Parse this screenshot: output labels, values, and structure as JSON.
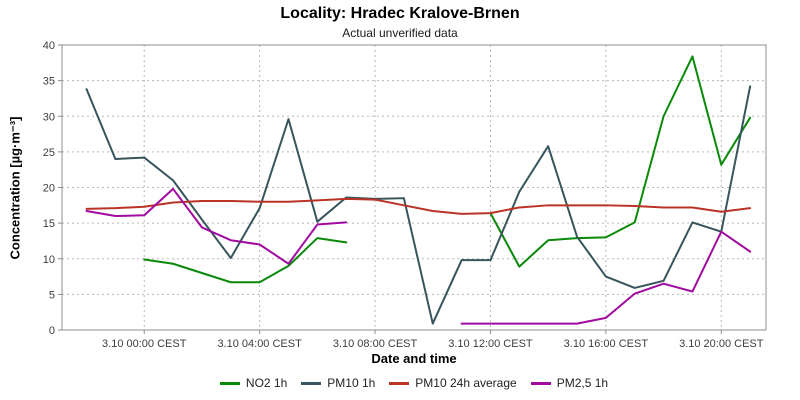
{
  "header": {
    "title": "Locality: Hradec Kralove-Brnen",
    "subtitle": "Actual unverified data"
  },
  "chart_data": {
    "type": "line",
    "title": "Locality: Hradec Kralove-Brnen",
    "subtitle": "Actual unverified data",
    "xlabel": "Date and time",
    "ylabel": "Concentration [µg·m⁻³]",
    "ylim": [
      0,
      40
    ],
    "y_ticks": [
      0,
      5,
      10,
      15,
      20,
      25,
      30,
      35,
      40
    ],
    "x_range": [
      -0.85,
      23.55
    ],
    "x_tick_indices": [
      2,
      6,
      10,
      14,
      18,
      22
    ],
    "x_tick_labels": [
      "3.10 00:00 CEST",
      "3.10 04:00 CEST",
      "3.10 08:00 CEST",
      "3.10 12:00 CEST",
      "3.10 16:00 CEST",
      "3.10 20:00 CEST"
    ],
    "grid": "dashed",
    "legend_position": "bottom",
    "points_per_hour": 1,
    "series": [
      {
        "name": "NO2 1h",
        "color": "#098909",
        "values": [
          null,
          null,
          9.9,
          9.3,
          8.0,
          6.7,
          6.7,
          9.0,
          12.9,
          12.3,
          null,
          null,
          null,
          null,
          16.4,
          8.9,
          12.6,
          12.9,
          13.0,
          15.1,
          30.0,
          38.4,
          23.2,
          29.8
        ]
      },
      {
        "name": "PM10 1h",
        "color": "#36555C",
        "values": [
          33.8,
          24.0,
          24.2,
          21.0,
          15.5,
          10.1,
          17.1,
          29.6,
          15.2,
          18.6,
          18.4,
          18.5,
          0.9,
          9.8,
          9.8,
          19.4,
          25.8,
          13.1,
          7.5,
          5.9,
          6.9,
          15.1,
          13.8,
          34.2
        ]
      },
      {
        "name": "PM10 24h average",
        "color": "#BB3327",
        "values": [
          17.0,
          17.1,
          17.3,
          17.9,
          18.1,
          18.1,
          18.0,
          18.0,
          18.2,
          18.4,
          18.3,
          17.5,
          16.7,
          16.3,
          16.4,
          17.2,
          17.5,
          17.5,
          17.5,
          17.4,
          17.2,
          17.2,
          16.6,
          17.1
        ]
      },
      {
        "name": "PM2,5 1h",
        "color": "#A00AA0",
        "values": [
          16.7,
          16.0,
          16.1,
          19.8,
          14.4,
          12.6,
          12.0,
          9.3,
          14.8,
          15.1,
          null,
          null,
          null,
          0.9,
          0.9,
          0.9,
          0.9,
          0.9,
          1.7,
          5.1,
          6.5,
          5.4,
          13.8,
          11.0
        ]
      }
    ]
  }
}
